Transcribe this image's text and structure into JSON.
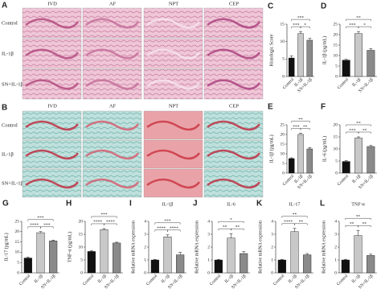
{
  "histology": [
    {
      "panel": "A",
      "columns": [
        "IVD",
        "AF",
        "NPT",
        "CEP"
      ],
      "rows": [
        "Control",
        "IL-1β",
        "SN+IL-1β"
      ]
    },
    {
      "panel": "B",
      "columns": [
        "IVD",
        "AF",
        "NPT",
        "CEP"
      ],
      "rows": [
        "Control",
        "IL-1β",
        "SN+IL-1β"
      ]
    }
  ],
  "chart_data": [
    {
      "type": "bar",
      "panel": "C",
      "ylabel": "Histologic Score",
      "categories": [
        "Control",
        "IL-1β",
        "SN+IL-1β"
      ],
      "values": [
        5.3,
        12.3,
        10.4
      ],
      "errors": [
        0.6,
        0.6,
        0.5
      ],
      "colors": [
        "#111111",
        "#c8c8c8",
        "#8a8a8a"
      ],
      "ylim": [
        0,
        15
      ],
      "yticks": [
        0,
        5,
        10,
        15
      ],
      "annotations": [
        "***",
        "***",
        "*"
      ]
    },
    {
      "type": "bar",
      "panel": "D",
      "ylabel": "IL-1β (pg/mL)",
      "categories": [
        "Control",
        "IL-1β",
        "SN+IL-1β"
      ],
      "values": [
        7.8,
        20.5,
        12.5
      ],
      "errors": [
        0.4,
        1.0,
        0.8
      ],
      "colors": [
        "#111111",
        "#c8c8c8",
        "#8a8a8a"
      ],
      "ylim": [
        0,
        25
      ],
      "yticks": [
        0,
        5,
        10,
        15,
        20,
        25
      ],
      "annotations": [
        "**",
        "***",
        "*"
      ]
    },
    {
      "type": "bar",
      "panel": "E",
      "ylabel": "IL-1β (pg/mL)",
      "categories": [
        "Control",
        "IL-1β",
        "SN+IL-1β"
      ],
      "values": [
        7.5,
        20.0,
        12.5
      ],
      "errors": [
        0.4,
        0.6,
        0.7
      ],
      "colors": [
        "#111111",
        "#c8c8c8",
        "#8a8a8a"
      ],
      "ylim": [
        0,
        25
      ],
      "yticks": [
        0,
        5,
        10,
        15,
        20,
        25
      ],
      "annotations": [
        "**",
        "***",
        "**"
      ]
    },
    {
      "type": "bar",
      "panel": "F",
      "ylabel": "IL-6 (pg/mL)",
      "categories": [
        "Control",
        "IL-1β",
        "SN+IL-1β"
      ],
      "values": [
        4.8,
        14.5,
        11.0
      ],
      "errors": [
        0.3,
        0.5,
        0.4
      ],
      "colors": [
        "#111111",
        "#c8c8c8",
        "#8a8a8a"
      ],
      "ylim": [
        0,
        20
      ],
      "yticks": [
        0,
        5,
        10,
        15,
        20
      ],
      "annotations": [
        "**",
        "***",
        "**"
      ]
    },
    {
      "type": "bar",
      "panel": "G",
      "ylabel": "IL-17 (pg/mL)",
      "categories": [
        "Control",
        "IL-1β",
        "SN+IL-1β"
      ],
      "values": [
        7.2,
        19.5,
        15.5
      ],
      "errors": [
        0.5,
        0.5,
        0.4
      ],
      "colors": [
        "#111111",
        "#c8c8c8",
        "#8a8a8a"
      ],
      "ylim": [
        0,
        25
      ],
      "yticks": [
        0,
        5,
        10,
        15,
        20,
        25
      ],
      "annotations": [
        "***",
        "****",
        "***"
      ]
    },
    {
      "type": "bar",
      "panel": "H",
      "ylabel": "TNF-α (pg/mL)",
      "categories": [
        "Control",
        "IL-1β",
        "SN+IL-1β"
      ],
      "values": [
        8.3,
        16.8,
        11.6
      ],
      "errors": [
        0.3,
        0.4,
        0.3
      ],
      "colors": [
        "#111111",
        "#c8c8c8",
        "#8a8a8a"
      ],
      "ylim": [
        0,
        20
      ],
      "yticks": [
        0,
        5,
        10,
        15,
        20
      ],
      "annotations": [
        "***",
        "****",
        "****"
      ]
    },
    {
      "type": "bar",
      "panel": "I",
      "title": "IL-1β",
      "ylabel": "Relative mRNA expression",
      "categories": [
        "Control",
        "IL-1β",
        "SN+IL-1β"
      ],
      "values": [
        1.0,
        2.8,
        1.4
      ],
      "errors": [
        0.05,
        0.15,
        0.2
      ],
      "colors": [
        "#111111",
        "#c8c8c8",
        "#8a8a8a"
      ],
      "ylim": [
        0,
        4
      ],
      "yticks": [
        0,
        1,
        2,
        3,
        4
      ],
      "annotations": [
        "***",
        "****",
        "****"
      ]
    },
    {
      "type": "bar",
      "panel": "J",
      "title": "IL-6",
      "ylabel": "Relative mRNA expression",
      "categories": [
        "Control",
        "IL-1β",
        "SN+IL-1β"
      ],
      "values": [
        1.0,
        2.7,
        1.5
      ],
      "errors": [
        0.05,
        0.35,
        0.15
      ],
      "colors": [
        "#111111",
        "#c8c8c8",
        "#8a8a8a"
      ],
      "ylim": [
        0,
        4
      ],
      "yticks": [
        0,
        1,
        2,
        3,
        4
      ],
      "annotations": [
        "*",
        "**",
        "**"
      ]
    },
    {
      "type": "bar",
      "panel": "K",
      "title": "IL-17",
      "ylabel": "Relative mRNA expression",
      "categories": [
        "Control",
        "IL-1β",
        "SN+IL-1β"
      ],
      "values": [
        1.0,
        3.2,
        1.4
      ],
      "errors": [
        0.05,
        0.25,
        0.1
      ],
      "colors": [
        "#111111",
        "#c8c8c8",
        "#8a8a8a"
      ],
      "ylim": [
        0,
        4
      ],
      "yticks": [
        0,
        1,
        2,
        3,
        4
      ],
      "annotations": [
        "**",
        "****",
        "**"
      ]
    },
    {
      "type": "bar",
      "panel": "L",
      "title": "TNF-α",
      "ylabel": "Relative mRNA expression",
      "categories": [
        "Control",
        "IL-1β",
        "SN+IL-1β"
      ],
      "values": [
        1.0,
        2.9,
        1.35
      ],
      "errors": [
        0.05,
        0.4,
        0.1
      ],
      "colors": [
        "#111111",
        "#c8c8c8",
        "#8a8a8a"
      ],
      "ylim": [
        0,
        4
      ],
      "yticks": [
        0,
        1,
        2,
        3,
        4
      ],
      "annotations": [
        "**",
        "**",
        "**"
      ]
    }
  ]
}
